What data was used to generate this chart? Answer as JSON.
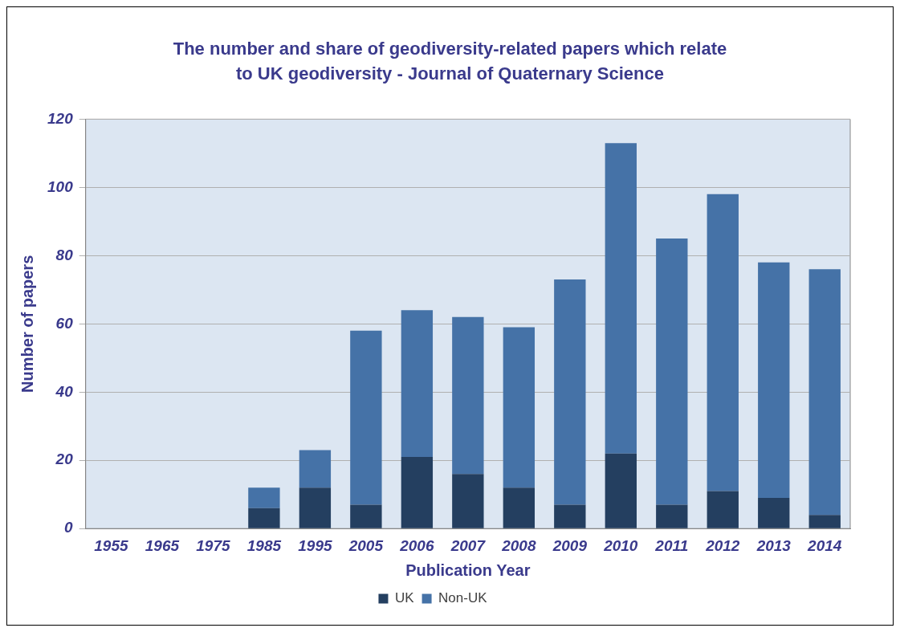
{
  "chart_data": {
    "type": "bar",
    "title": "The number and share of geodiversity-related papers which relate to UK geodiversity - Journal of Quaternary Science",
    "xlabel": "Publication Year",
    "ylabel": "Number of papers",
    "categories": [
      "1955",
      "1965",
      "1975",
      "1985",
      "1995",
      "2005",
      "2006",
      "2007",
      "2008",
      "2009",
      "2010",
      "2011",
      "2012",
      "2013",
      "2014"
    ],
    "stacked": true,
    "series": [
      {
        "name": "UK",
        "color": "#243f60",
        "values": [
          0,
          0,
          0,
          6,
          12,
          7,
          21,
          16,
          12,
          7,
          22,
          7,
          11,
          9,
          4
        ]
      },
      {
        "name": "Non-UK",
        "color": "#4572a7",
        "values": [
          0,
          0,
          0,
          6,
          11,
          51,
          43,
          46,
          47,
          66,
          91,
          78,
          87,
          69,
          72
        ]
      }
    ],
    "ylim": [
      0,
      120
    ],
    "yticks": [
      0,
      20,
      40,
      60,
      80,
      100,
      120
    ],
    "grid": "y",
    "legend": "bottom"
  }
}
